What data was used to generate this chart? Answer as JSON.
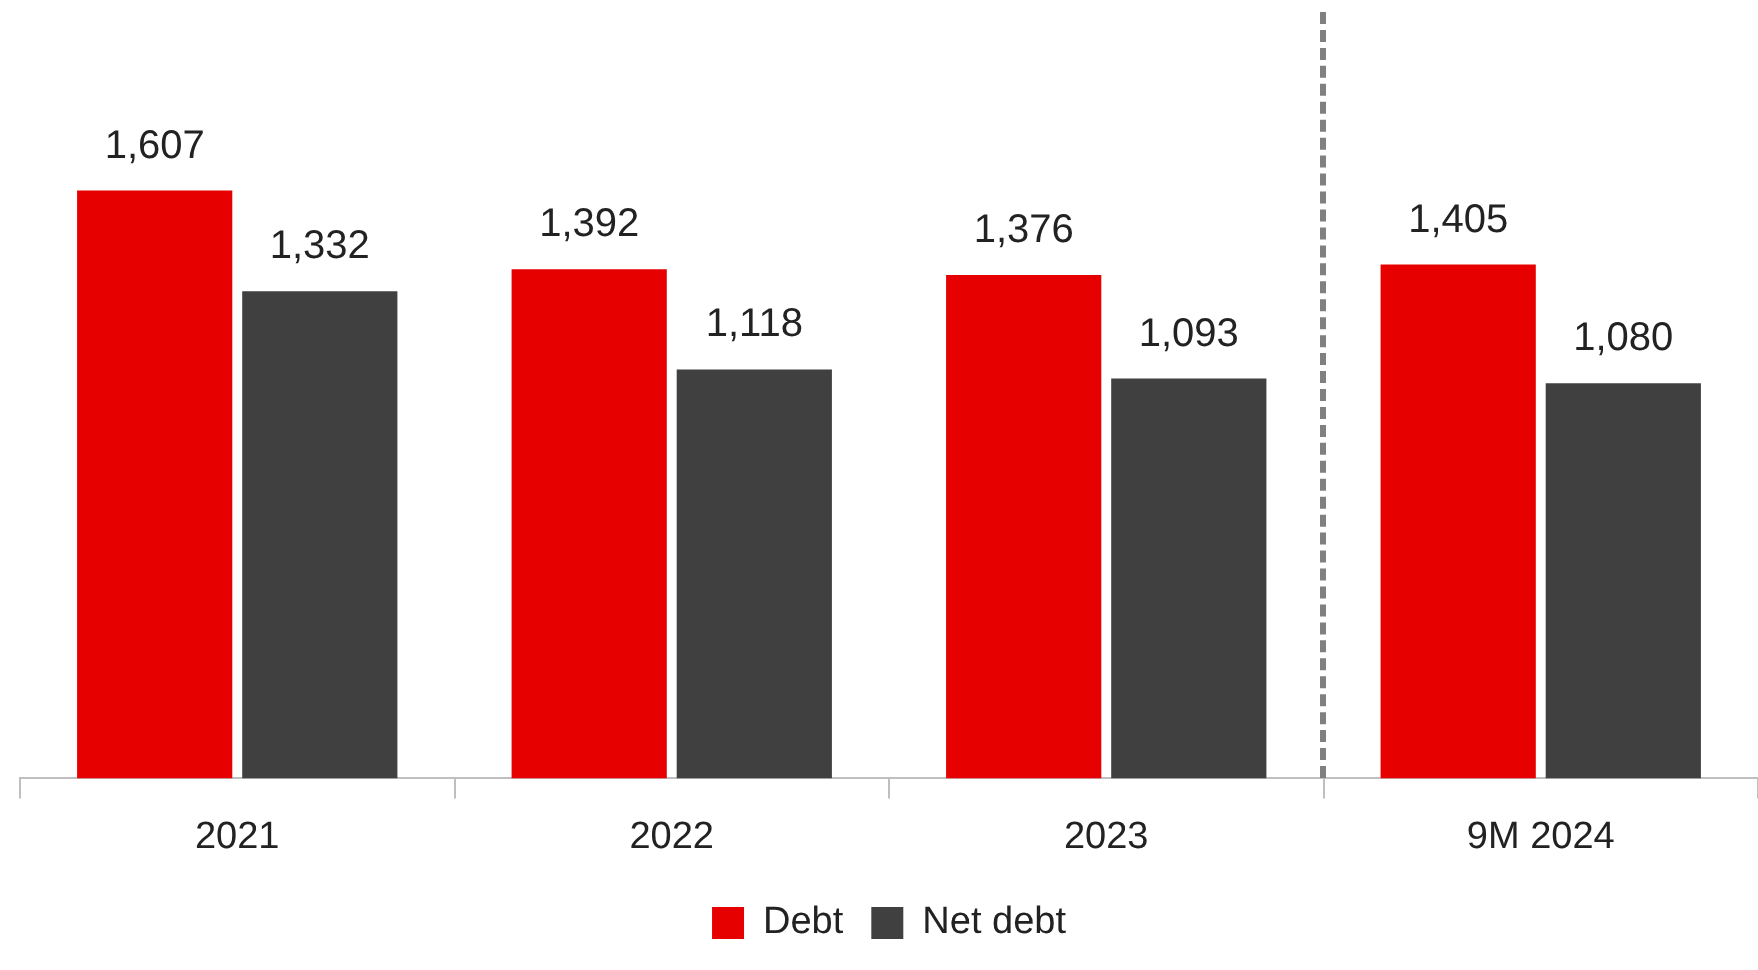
{
  "chart_data": {
    "type": "bar",
    "categories": [
      "2021",
      "2022",
      "2023",
      "9M 2024"
    ],
    "series": [
      {
        "name": "Debt",
        "color": "#e60000",
        "values": [
          1607,
          1392,
          1376,
          1405
        ],
        "value_labels": [
          "1,607",
          "1,392",
          "1,376",
          "1,405"
        ]
      },
      {
        "name": "Net debt",
        "color": "#404040",
        "values": [
          1332,
          1118,
          1093,
          1080
        ],
        "value_labels": [
          "1,332",
          "1,118",
          "1,093",
          "1,080"
        ]
      }
    ],
    "legend": "bottom",
    "grid": false,
    "tick_labels": "x"
  }
}
